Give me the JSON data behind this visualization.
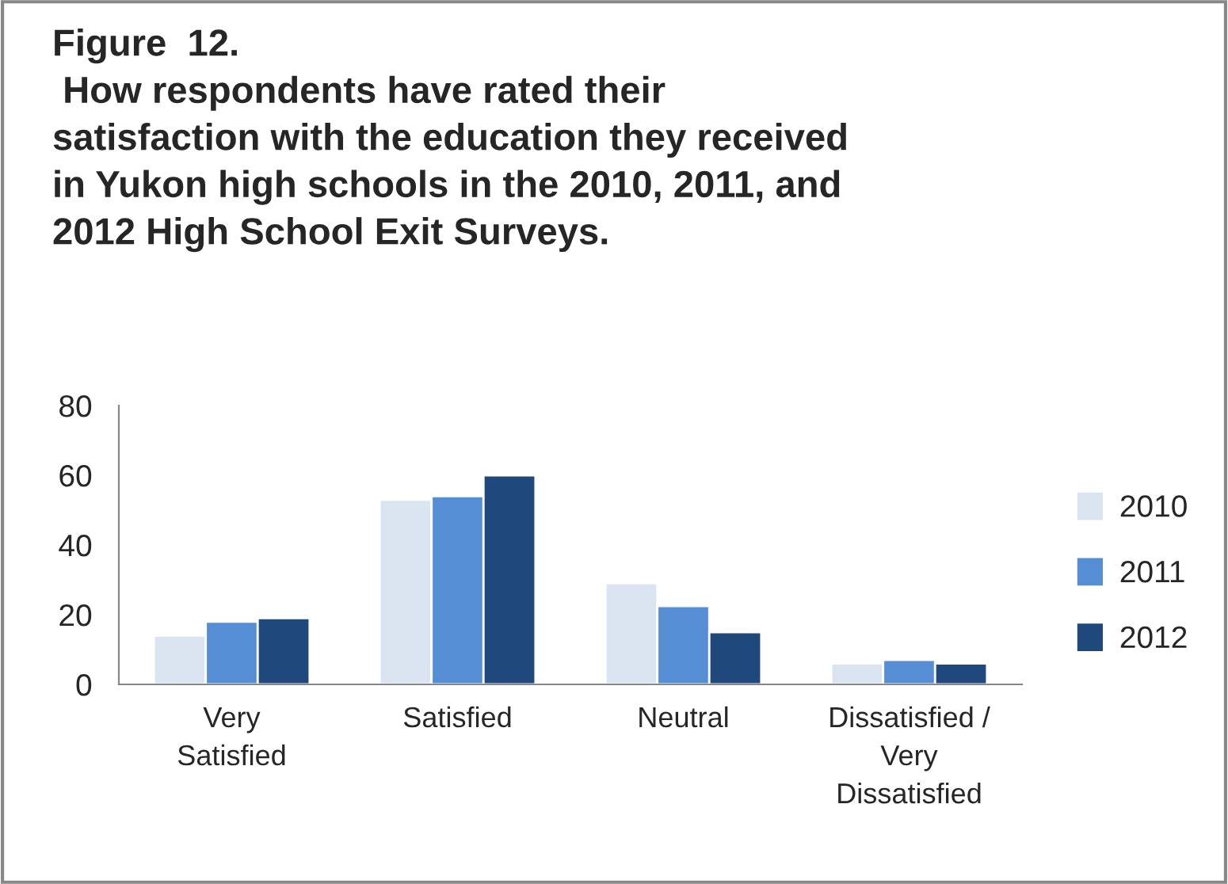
{
  "chart_data": {
    "type": "bar",
    "title": "Figure  12.\n How respondents have rated their\nsatisfaction with the education they received\nin Yukon high schools in the 2010, 2011, and\n2012 High School Exit Surveys.",
    "categories": [
      "Very\nSatisfied",
      "Satisfied",
      "Neutral",
      "Dissatisfied /\nVery\nDissatisfied"
    ],
    "series": [
      {
        "name": "2010",
        "color": "#dbe5f1",
        "values": [
          14,
          53,
          29,
          6
        ]
      },
      {
        "name": "2011",
        "color": "#558ed5",
        "values": [
          18,
          54,
          22.5,
          7
        ]
      },
      {
        "name": "2012",
        "color": "#1f497d",
        "values": [
          19,
          60,
          15,
          6
        ]
      }
    ],
    "ylim": [
      0,
      80
    ],
    "yticks": [
      0,
      20,
      40,
      60,
      80
    ],
    "grid": false,
    "legend": "right"
  }
}
